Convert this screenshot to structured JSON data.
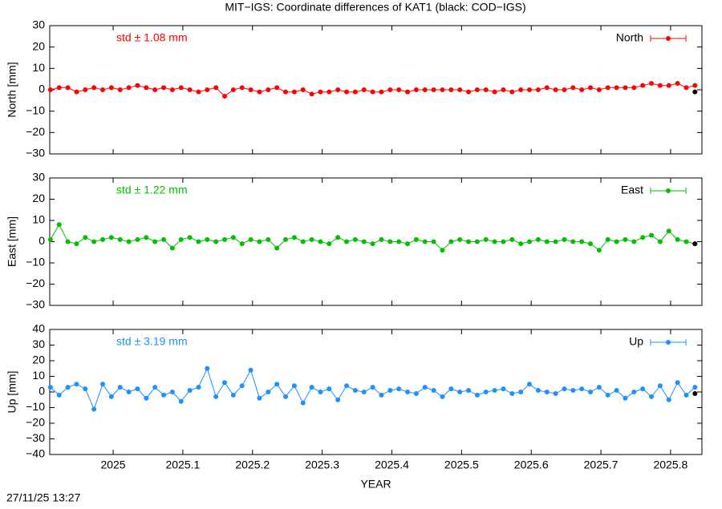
{
  "title": "MIT−IGS: Coordinate differences of KAT1 (black: COD−IGS)",
  "timestamp": "27/11/25 13:27",
  "chart_data": [
    {
      "type": "line",
      "ylabel": "North [mm]",
      "annotation": "std ± 1.08 mm",
      "legend": "top-right",
      "xlim": [
        2024.909,
        2025.845
      ],
      "ylim": [
        -30,
        30
      ],
      "yticks": [
        {
          "value": -30,
          "label": "−30"
        },
        {
          "value": -20,
          "label": "−20"
        },
        {
          "value": -10,
          "label": "−10"
        },
        0,
        10,
        20,
        30
      ],
      "x": [
        2024.91,
        2024.9225,
        2024.935,
        2024.9475,
        2024.96,
        2024.9725,
        2024.985,
        2024.9975,
        2025.01,
        2025.0225,
        2025.035,
        2025.0475,
        2025.06,
        2025.0725,
        2025.085,
        2025.0975,
        2025.11,
        2025.1225,
        2025.135,
        2025.1475,
        2025.16,
        2025.1725,
        2025.185,
        2025.1975,
        2025.21,
        2025.2225,
        2025.235,
        2025.2475,
        2025.26,
        2025.2725,
        2025.285,
        2025.2975,
        2025.31,
        2025.3225,
        2025.335,
        2025.3475,
        2025.36,
        2025.3725,
        2025.385,
        2025.3975,
        2025.41,
        2025.4225,
        2025.435,
        2025.4475,
        2025.46,
        2025.4725,
        2025.485,
        2025.4975,
        2025.51,
        2025.5225,
        2025.535,
        2025.5475,
        2025.56,
        2025.5725,
        2025.585,
        2025.5975,
        2025.61,
        2025.6225,
        2025.635,
        2025.6475,
        2025.66,
        2025.6725,
        2025.685,
        2025.6975,
        2025.71,
        2025.7225,
        2025.735,
        2025.7475,
        2025.76,
        2025.7725,
        2025.785,
        2025.7975,
        2025.81,
        2025.8225,
        2025.835
      ],
      "series": [
        {
          "name": "North",
          "color": "#ff0000",
          "values": [
            0,
            1,
            1,
            -1,
            0,
            1,
            0,
            1,
            0,
            1,
            2,
            1,
            0,
            1,
            0,
            1,
            0,
            -1,
            0,
            1,
            -3,
            0,
            1,
            0,
            -1,
            0,
            1,
            -1,
            -1,
            0,
            -2,
            -1,
            -1,
            0,
            -1,
            -1,
            0,
            -1,
            -1,
            0,
            0,
            -1,
            0,
            0,
            0,
            0,
            0,
            0,
            -1,
            0,
            0,
            -1,
            0,
            -1,
            0,
            0,
            0,
            1,
            0,
            0,
            1,
            0,
            1,
            0,
            1,
            1,
            1,
            1,
            2,
            3,
            2,
            2,
            3,
            1,
            2
          ]
        },
        {
          "color": "#000000",
          "x": [
            2025.835
          ],
          "values": [
            -1
          ]
        }
      ]
    },
    {
      "type": "line",
      "ylabel": "East [mm]",
      "annotation": "std ± 1.22 mm",
      "legend": "top-right",
      "xlim": [
        2024.909,
        2025.845
      ],
      "ylim": [
        -30,
        30
      ],
      "yticks": [
        {
          "value": -30,
          "label": "−30"
        },
        {
          "value": -20,
          "label": "−20"
        },
        {
          "value": -10,
          "label": "−10"
        },
        0,
        10,
        20,
        30
      ],
      "x": [
        2024.91,
        2024.9225,
        2024.935,
        2024.9475,
        2024.96,
        2024.9725,
        2024.985,
        2024.9975,
        2025.01,
        2025.0225,
        2025.035,
        2025.0475,
        2025.06,
        2025.0725,
        2025.085,
        2025.0975,
        2025.11,
        2025.1225,
        2025.135,
        2025.1475,
        2025.16,
        2025.1725,
        2025.185,
        2025.1975,
        2025.21,
        2025.2225,
        2025.235,
        2025.2475,
        2025.26,
        2025.2725,
        2025.285,
        2025.2975,
        2025.31,
        2025.3225,
        2025.335,
        2025.3475,
        2025.36,
        2025.3725,
        2025.385,
        2025.3975,
        2025.41,
        2025.4225,
        2025.435,
        2025.4475,
        2025.46,
        2025.4725,
        2025.485,
        2025.4975,
        2025.51,
        2025.5225,
        2025.535,
        2025.5475,
        2025.56,
        2025.5725,
        2025.585,
        2025.5975,
        2025.61,
        2025.6225,
        2025.635,
        2025.6475,
        2025.66,
        2025.6725,
        2025.685,
        2025.6975,
        2025.71,
        2025.7225,
        2025.735,
        2025.7475,
        2025.76,
        2025.7725,
        2025.785,
        2025.7975,
        2025.81,
        2025.8225,
        2025.835
      ],
      "series": [
        {
          "name": "East",
          "color": "#00c000",
          "values": [
            1,
            8,
            0,
            -1,
            2,
            0,
            1,
            2,
            1,
            0,
            1,
            2,
            0,
            1,
            -3,
            1,
            2,
            0,
            1,
            0,
            1,
            2,
            -1,
            1,
            0,
            1,
            -3,
            1,
            2,
            0,
            1,
            0,
            -1,
            2,
            0,
            1,
            0,
            -1,
            1,
            0,
            0,
            -1,
            1,
            0,
            0,
            -4,
            0,
            1,
            0,
            0,
            1,
            0,
            0,
            1,
            -1,
            0,
            1,
            0,
            0,
            1,
            0,
            0,
            -1,
            -4,
            1,
            0,
            1,
            0,
            2,
            3,
            0,
            5,
            1,
            0,
            -1
          ]
        },
        {
          "color": "#000000",
          "x": [
            2025.835
          ],
          "values": [
            -1
          ]
        }
      ]
    },
    {
      "type": "line",
      "ylabel": "Up [mm]",
      "annotation": "std ± 3.19 mm",
      "legend": "top-right",
      "xlabel": "YEAR",
      "xlim": [
        2024.909,
        2025.845
      ],
      "ylim": [
        -40,
        40
      ],
      "xticks": [
        2025,
        2025.1,
        2025.2,
        2025.3,
        2025.4,
        2025.5,
        2025.6,
        2025.7,
        2025.8
      ],
      "yticks": [
        {
          "value": -40,
          "label": "−40"
        },
        {
          "value": -30,
          "label": "−30"
        },
        {
          "value": -20,
          "label": "−20"
        },
        {
          "value": -10,
          "label": "−10"
        },
        0,
        10,
        20,
        30,
        40
      ],
      "x": [
        2024.91,
        2024.9225,
        2024.935,
        2024.9475,
        2024.96,
        2024.9725,
        2024.985,
        2024.9975,
        2025.01,
        2025.0225,
        2025.035,
        2025.0475,
        2025.06,
        2025.0725,
        2025.085,
        2025.0975,
        2025.11,
        2025.1225,
        2025.135,
        2025.1475,
        2025.16,
        2025.1725,
        2025.185,
        2025.1975,
        2025.21,
        2025.2225,
        2025.235,
        2025.2475,
        2025.26,
        2025.2725,
        2025.285,
        2025.2975,
        2025.31,
        2025.3225,
        2025.335,
        2025.3475,
        2025.36,
        2025.3725,
        2025.385,
        2025.3975,
        2025.41,
        2025.4225,
        2025.435,
        2025.4475,
        2025.46,
        2025.4725,
        2025.485,
        2025.4975,
        2025.51,
        2025.5225,
        2025.535,
        2025.5475,
        2025.56,
        2025.5725,
        2025.585,
        2025.5975,
        2025.61,
        2025.6225,
        2025.635,
        2025.6475,
        2025.66,
        2025.6725,
        2025.685,
        2025.6975,
        2025.71,
        2025.7225,
        2025.735,
        2025.7475,
        2025.76,
        2025.7725,
        2025.785,
        2025.7975,
        2025.81,
        2025.8225,
        2025.835
      ],
      "series": [
        {
          "name": "Up",
          "color": "#1e90ff",
          "values": [
            3,
            -2,
            3,
            5,
            2,
            -11,
            5,
            -3,
            3,
            0,
            2,
            -4,
            3,
            -2,
            0,
            -6,
            1,
            3,
            15,
            -3,
            6,
            -2,
            4,
            14,
            -4,
            0,
            5,
            -3,
            4,
            -7,
            3,
            0,
            2,
            -5,
            4,
            1,
            0,
            3,
            -2,
            1,
            2,
            0,
            -1,
            3,
            1,
            -3,
            2,
            0,
            1,
            -2,
            0,
            1,
            2,
            -1,
            0,
            5,
            1,
            0,
            -1,
            2,
            1,
            2,
            0,
            3,
            -2,
            1,
            -4,
            0,
            2,
            -3,
            4,
            -5,
            6,
            -2,
            3
          ]
        },
        {
          "color": "#000000",
          "x": [
            2025.835
          ],
          "values": [
            -1
          ]
        }
      ]
    }
  ]
}
